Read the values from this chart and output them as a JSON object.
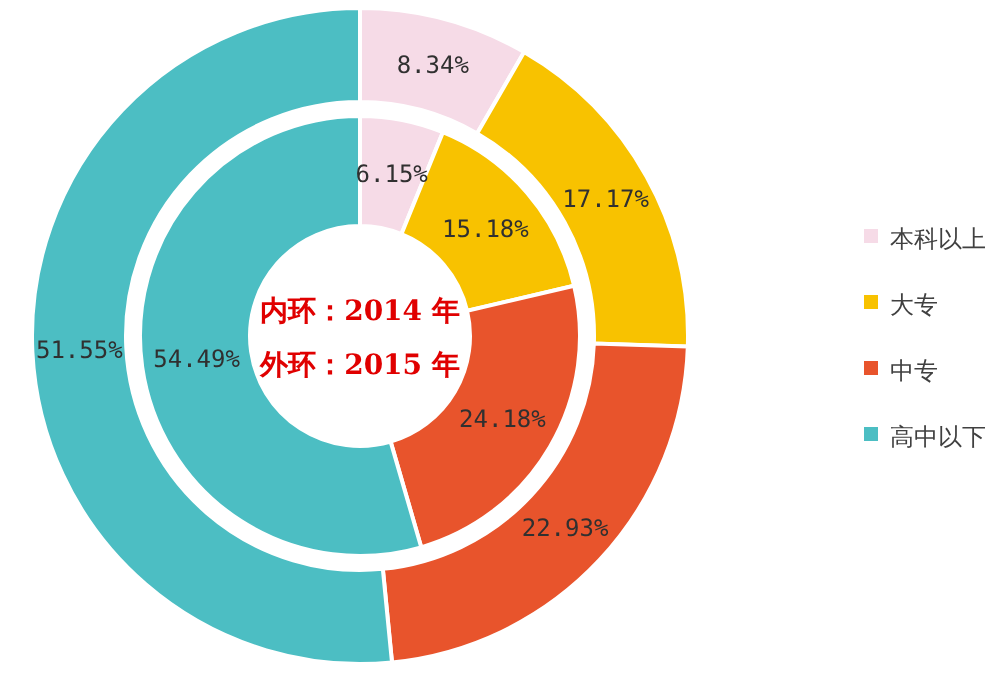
{
  "chart_data": {
    "type": "donut",
    "categories": [
      "本科以上",
      "大专",
      "中专",
      "高中以下"
    ],
    "colors": [
      "#f6dbe7",
      "#f8c200",
      "#e8542c",
      "#4cbec3"
    ],
    "series": [
      {
        "values": [
          6.15,
          15.18,
          24.18,
          54.49
        ],
        "value_labels": [
          "6.15%",
          "15.18%",
          "24.18%",
          "54.49%"
        ]
      },
      {
        "values": [
          8.34,
          17.17,
          22.93,
          51.55
        ],
        "value_labels": [
          "8.34%",
          "17.17%",
          "22.93%",
          "51.55%"
        ]
      }
    ],
    "legend": "right",
    "annotations": [
      "内环：2014 年",
      "外环：2015 年"
    ]
  }
}
